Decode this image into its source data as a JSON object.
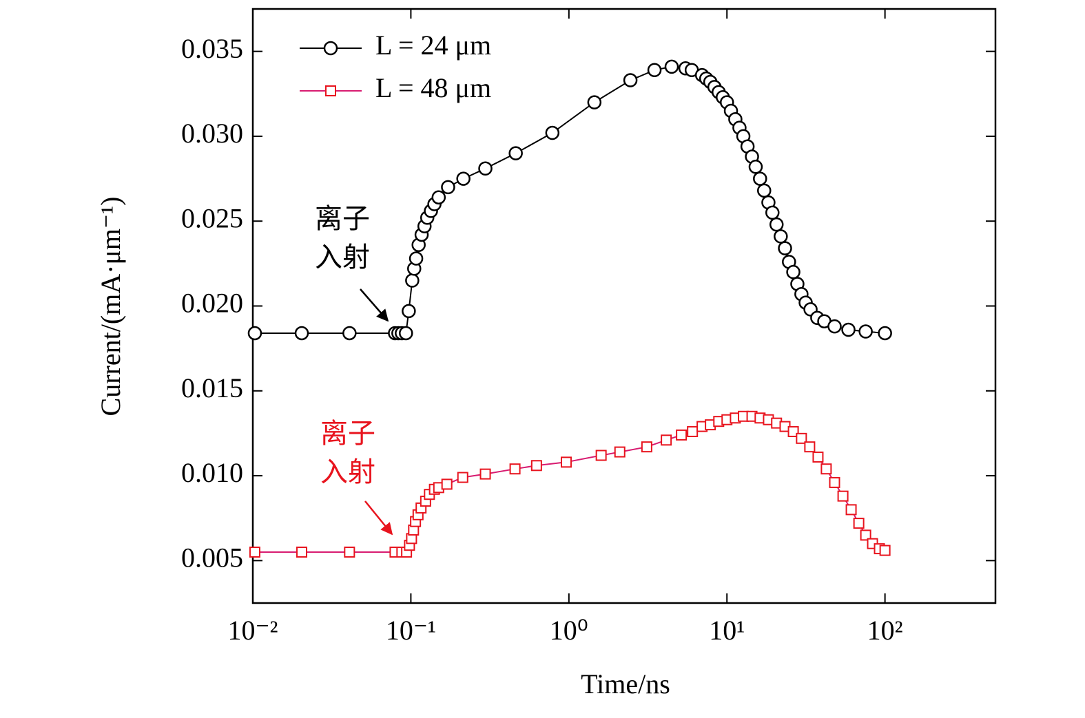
{
  "chart_data": {
    "type": "line",
    "xlabel": "Time/ns",
    "ylabel": "Current/(mA·μm⁻¹)",
    "xscale": "log",
    "xlim": [
      0.01,
      500
    ],
    "ylim": [
      0.0025,
      0.0375
    ],
    "xticks": [
      {
        "value": 0.01,
        "label": "10⁻²"
      },
      {
        "value": 0.1,
        "label": "10⁻¹"
      },
      {
        "value": 1,
        "label": "10⁰"
      },
      {
        "value": 10,
        "label": "10¹"
      },
      {
        "value": 100,
        "label": "10²"
      }
    ],
    "yticks": [
      0.005,
      {
        "value": 0.01,
        "label": "0.010"
      },
      0.015,
      {
        "value": 0.02,
        "label": "0.020"
      },
      0.025,
      {
        "value": 0.03,
        "label": "0.030"
      },
      0.035
    ],
    "legend": "upper left",
    "series": [
      {
        "name": "L = 24 μm",
        "color": "#000000",
        "line_color": "#000000",
        "marker": "circle",
        "x": [
          0.0103,
          0.0204,
          0.0409,
          0.0794,
          0.0834,
          0.0877,
          0.0931,
          0.097,
          0.102,
          0.105,
          0.108,
          0.112,
          0.117,
          0.122,
          0.127,
          0.134,
          0.141,
          0.15,
          0.172,
          0.215,
          0.296,
          0.461,
          0.786,
          1.45,
          2.45,
          3.48,
          4.47,
          5.47,
          5.99,
          6.96,
          7.4,
          7.85,
          8.34,
          8.87,
          9.42,
          10.0,
          10.6,
          11.3,
          12.0,
          12.7,
          13.5,
          14.4,
          15.2,
          16.2,
          17.2,
          18.3,
          19.4,
          20.6,
          21.9,
          23.3,
          24.7,
          26.3,
          27.9,
          29.6,
          31.5,
          33.8,
          37.3,
          41.3,
          48.0,
          58.7,
          75.5,
          100
        ],
        "values": [
          0.0184,
          0.0184,
          0.0184,
          0.0184,
          0.0184,
          0.0184,
          0.0184,
          0.0197,
          0.0215,
          0.0222,
          0.0228,
          0.0236,
          0.0242,
          0.0247,
          0.0252,
          0.0256,
          0.026,
          0.0264,
          0.027,
          0.0275,
          0.0281,
          0.029,
          0.0302,
          0.032,
          0.0333,
          0.0339,
          0.0341,
          0.034,
          0.0339,
          0.0336,
          0.0334,
          0.0332,
          0.0329,
          0.0326,
          0.0323,
          0.032,
          0.0315,
          0.031,
          0.0305,
          0.03,
          0.0294,
          0.0288,
          0.0282,
          0.0275,
          0.0268,
          0.0261,
          0.0255,
          0.0248,
          0.0241,
          0.0234,
          0.0226,
          0.022,
          0.0213,
          0.0207,
          0.0202,
          0.0198,
          0.0193,
          0.0191,
          0.0188,
          0.0186,
          0.0185,
          0.0184
        ]
      },
      {
        "name": "L = 48 μm",
        "color": "#e8141e",
        "line_color": "#d81b70",
        "marker": "square",
        "x": [
          0.0103,
          0.0204,
          0.0409,
          0.0794,
          0.0877,
          0.0939,
          0.098,
          0.101,
          0.104,
          0.107,
          0.111,
          0.116,
          0.124,
          0.131,
          0.141,
          0.15,
          0.169,
          0.213,
          0.296,
          0.456,
          0.624,
          0.962,
          1.6,
          2.1,
          3.11,
          4.13,
          5.15,
          6.05,
          6.96,
          7.85,
          8.87,
          10.0,
          11.3,
          12.7,
          14.4,
          16.2,
          18.3,
          20.6,
          23.3,
          26.3,
          29.6,
          33.4,
          37.7,
          42.5,
          48.0,
          54.2,
          61.1,
          68.3,
          75.5,
          83.4,
          92.2,
          100
        ],
        "values": [
          0.0055,
          0.0055,
          0.0055,
          0.0055,
          0.0055,
          0.0055,
          0.0059,
          0.0063,
          0.0068,
          0.0073,
          0.0077,
          0.0081,
          0.0085,
          0.0089,
          0.0092,
          0.0093,
          0.0095,
          0.0099,
          0.0101,
          0.0104,
          0.0106,
          0.0108,
          0.0112,
          0.0114,
          0.0117,
          0.0121,
          0.0124,
          0.0126,
          0.0129,
          0.013,
          0.0132,
          0.0133,
          0.0134,
          0.0135,
          0.0135,
          0.0134,
          0.0133,
          0.0131,
          0.0129,
          0.0126,
          0.0122,
          0.0117,
          0.0111,
          0.0104,
          0.0096,
          0.0088,
          0.008,
          0.0072,
          0.0065,
          0.006,
          0.0057,
          0.0056
        ]
      }
    ],
    "annotations": [
      {
        "lines": [
          "离子",
          "入射"
        ],
        "color": "#000000"
      },
      {
        "lines": [
          "离子",
          "入射"
        ],
        "color": "#e8141e"
      }
    ]
  }
}
